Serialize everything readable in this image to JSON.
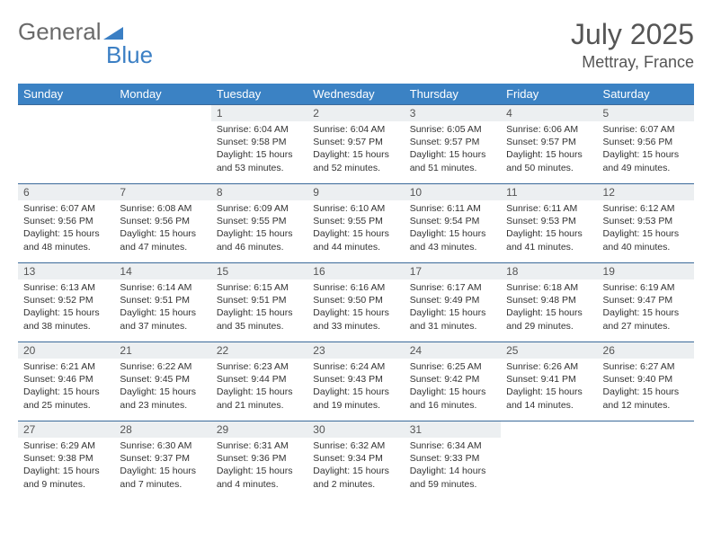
{
  "logo": {
    "text1": "General",
    "text2": "Blue"
  },
  "title": "July 2025",
  "location": "Mettray, France",
  "colors": {
    "header_bg": "#3b82c4",
    "header_text": "#ffffff",
    "daynum_bg": "#eceff1",
    "row_border": "#3b6a9a",
    "logo_gray": "#6a6a6a",
    "logo_blue": "#3b7fc4"
  },
  "weekdays": [
    "Sunday",
    "Monday",
    "Tuesday",
    "Wednesday",
    "Thursday",
    "Friday",
    "Saturday"
  ],
  "weeks": [
    [
      null,
      null,
      {
        "n": "1",
        "sr": "Sunrise: 6:04 AM",
        "ss": "Sunset: 9:58 PM",
        "d1": "Daylight: 15 hours",
        "d2": "and 53 minutes."
      },
      {
        "n": "2",
        "sr": "Sunrise: 6:04 AM",
        "ss": "Sunset: 9:57 PM",
        "d1": "Daylight: 15 hours",
        "d2": "and 52 minutes."
      },
      {
        "n": "3",
        "sr": "Sunrise: 6:05 AM",
        "ss": "Sunset: 9:57 PM",
        "d1": "Daylight: 15 hours",
        "d2": "and 51 minutes."
      },
      {
        "n": "4",
        "sr": "Sunrise: 6:06 AM",
        "ss": "Sunset: 9:57 PM",
        "d1": "Daylight: 15 hours",
        "d2": "and 50 minutes."
      },
      {
        "n": "5",
        "sr": "Sunrise: 6:07 AM",
        "ss": "Sunset: 9:56 PM",
        "d1": "Daylight: 15 hours",
        "d2": "and 49 minutes."
      }
    ],
    [
      {
        "n": "6",
        "sr": "Sunrise: 6:07 AM",
        "ss": "Sunset: 9:56 PM",
        "d1": "Daylight: 15 hours",
        "d2": "and 48 minutes."
      },
      {
        "n": "7",
        "sr": "Sunrise: 6:08 AM",
        "ss": "Sunset: 9:56 PM",
        "d1": "Daylight: 15 hours",
        "d2": "and 47 minutes."
      },
      {
        "n": "8",
        "sr": "Sunrise: 6:09 AM",
        "ss": "Sunset: 9:55 PM",
        "d1": "Daylight: 15 hours",
        "d2": "and 46 minutes."
      },
      {
        "n": "9",
        "sr": "Sunrise: 6:10 AM",
        "ss": "Sunset: 9:55 PM",
        "d1": "Daylight: 15 hours",
        "d2": "and 44 minutes."
      },
      {
        "n": "10",
        "sr": "Sunrise: 6:11 AM",
        "ss": "Sunset: 9:54 PM",
        "d1": "Daylight: 15 hours",
        "d2": "and 43 minutes."
      },
      {
        "n": "11",
        "sr": "Sunrise: 6:11 AM",
        "ss": "Sunset: 9:53 PM",
        "d1": "Daylight: 15 hours",
        "d2": "and 41 minutes."
      },
      {
        "n": "12",
        "sr": "Sunrise: 6:12 AM",
        "ss": "Sunset: 9:53 PM",
        "d1": "Daylight: 15 hours",
        "d2": "and 40 minutes."
      }
    ],
    [
      {
        "n": "13",
        "sr": "Sunrise: 6:13 AM",
        "ss": "Sunset: 9:52 PM",
        "d1": "Daylight: 15 hours",
        "d2": "and 38 minutes."
      },
      {
        "n": "14",
        "sr": "Sunrise: 6:14 AM",
        "ss": "Sunset: 9:51 PM",
        "d1": "Daylight: 15 hours",
        "d2": "and 37 minutes."
      },
      {
        "n": "15",
        "sr": "Sunrise: 6:15 AM",
        "ss": "Sunset: 9:51 PM",
        "d1": "Daylight: 15 hours",
        "d2": "and 35 minutes."
      },
      {
        "n": "16",
        "sr": "Sunrise: 6:16 AM",
        "ss": "Sunset: 9:50 PM",
        "d1": "Daylight: 15 hours",
        "d2": "and 33 minutes."
      },
      {
        "n": "17",
        "sr": "Sunrise: 6:17 AM",
        "ss": "Sunset: 9:49 PM",
        "d1": "Daylight: 15 hours",
        "d2": "and 31 minutes."
      },
      {
        "n": "18",
        "sr": "Sunrise: 6:18 AM",
        "ss": "Sunset: 9:48 PM",
        "d1": "Daylight: 15 hours",
        "d2": "and 29 minutes."
      },
      {
        "n": "19",
        "sr": "Sunrise: 6:19 AM",
        "ss": "Sunset: 9:47 PM",
        "d1": "Daylight: 15 hours",
        "d2": "and 27 minutes."
      }
    ],
    [
      {
        "n": "20",
        "sr": "Sunrise: 6:21 AM",
        "ss": "Sunset: 9:46 PM",
        "d1": "Daylight: 15 hours",
        "d2": "and 25 minutes."
      },
      {
        "n": "21",
        "sr": "Sunrise: 6:22 AM",
        "ss": "Sunset: 9:45 PM",
        "d1": "Daylight: 15 hours",
        "d2": "and 23 minutes."
      },
      {
        "n": "22",
        "sr": "Sunrise: 6:23 AM",
        "ss": "Sunset: 9:44 PM",
        "d1": "Daylight: 15 hours",
        "d2": "and 21 minutes."
      },
      {
        "n": "23",
        "sr": "Sunrise: 6:24 AM",
        "ss": "Sunset: 9:43 PM",
        "d1": "Daylight: 15 hours",
        "d2": "and 19 minutes."
      },
      {
        "n": "24",
        "sr": "Sunrise: 6:25 AM",
        "ss": "Sunset: 9:42 PM",
        "d1": "Daylight: 15 hours",
        "d2": "and 16 minutes."
      },
      {
        "n": "25",
        "sr": "Sunrise: 6:26 AM",
        "ss": "Sunset: 9:41 PM",
        "d1": "Daylight: 15 hours",
        "d2": "and 14 minutes."
      },
      {
        "n": "26",
        "sr": "Sunrise: 6:27 AM",
        "ss": "Sunset: 9:40 PM",
        "d1": "Daylight: 15 hours",
        "d2": "and 12 minutes."
      }
    ],
    [
      {
        "n": "27",
        "sr": "Sunrise: 6:29 AM",
        "ss": "Sunset: 9:38 PM",
        "d1": "Daylight: 15 hours",
        "d2": "and 9 minutes."
      },
      {
        "n": "28",
        "sr": "Sunrise: 6:30 AM",
        "ss": "Sunset: 9:37 PM",
        "d1": "Daylight: 15 hours",
        "d2": "and 7 minutes."
      },
      {
        "n": "29",
        "sr": "Sunrise: 6:31 AM",
        "ss": "Sunset: 9:36 PM",
        "d1": "Daylight: 15 hours",
        "d2": "and 4 minutes."
      },
      {
        "n": "30",
        "sr": "Sunrise: 6:32 AM",
        "ss": "Sunset: 9:34 PM",
        "d1": "Daylight: 15 hours",
        "d2": "and 2 minutes."
      },
      {
        "n": "31",
        "sr": "Sunrise: 6:34 AM",
        "ss": "Sunset: 9:33 PM",
        "d1": "Daylight: 14 hours",
        "d2": "and 59 minutes."
      },
      null,
      null
    ]
  ]
}
